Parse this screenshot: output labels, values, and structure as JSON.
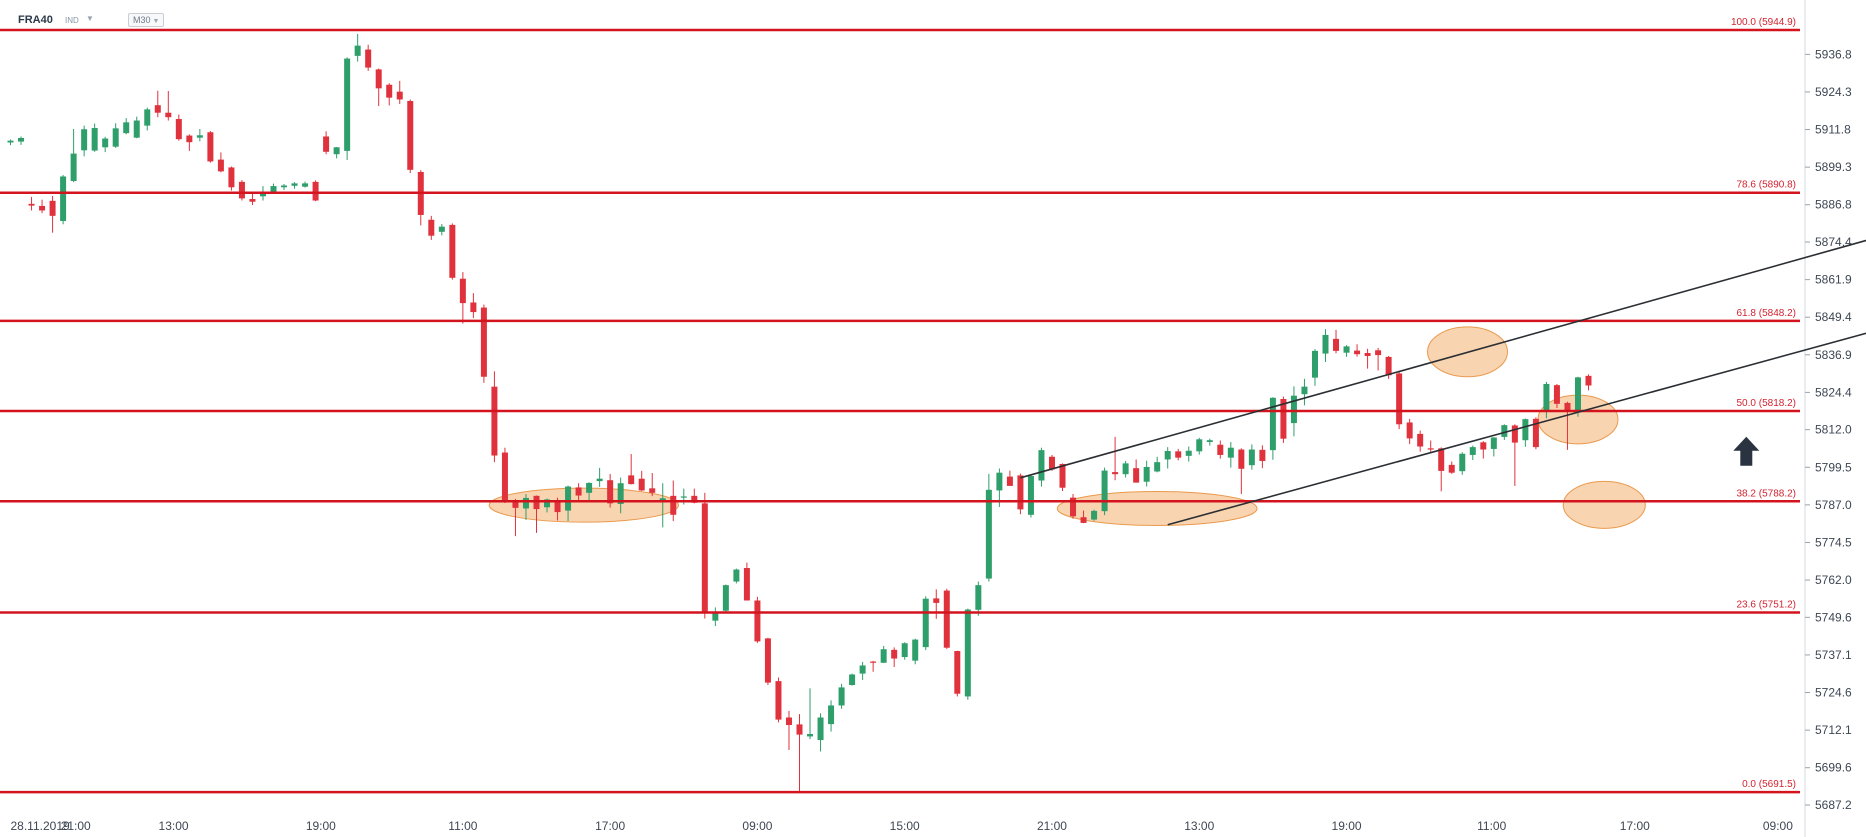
{
  "header": {
    "symbol": "FRA40",
    "badge": "IND",
    "interval": "M30"
  },
  "colors": {
    "up": "#2e9e6a",
    "down": "#e0323c",
    "level": "#d3141f",
    "channel": "#2b2f33",
    "zone": "#f5b87c",
    "zone_stroke": "#e99a4e",
    "arrow": "#2a3440"
  },
  "chart_data": {
    "type": "candlestick",
    "instrument": "FRA40",
    "timeframe": "M30",
    "y_axis": {
      "range": [
        5687.2,
        5944.9
      ],
      "ticks": [
        5936.8,
        5924.3,
        5911.8,
        5899.3,
        5886.8,
        5874.4,
        5861.9,
        5849.4,
        5836.9,
        5824.4,
        5812.0,
        5799.5,
        5787.0,
        5774.5,
        5762.0,
        5749.6,
        5737.1,
        5724.6,
        5712.1,
        5699.6,
        5687.2
      ]
    },
    "x_axis": {
      "ticks": [
        "28.11.2019",
        "21:00",
        "13:00",
        "19:00",
        "11:00",
        "17:00",
        "09:00",
        "15:00",
        "21:00",
        "13:00",
        "19:00",
        "11:00",
        "17:00",
        "09:00"
      ]
    },
    "fibonacci_levels": [
      {
        "label": "100.0 (5944.9)",
        "ratio": 100.0,
        "value": 5944.9
      },
      {
        "label": "78.6 (5890.8)",
        "ratio": 78.6,
        "value": 5890.8
      },
      {
        "label": "61.8 (5848.2)",
        "ratio": 61.8,
        "value": 5848.2
      },
      {
        "label": "50.0 (5818.2)",
        "ratio": 50.0,
        "value": 5818.2
      },
      {
        "label": "38.2 (5788.2)",
        "ratio": 38.2,
        "value": 5788.2
      },
      {
        "label": "23.6 (5751.2)",
        "ratio": 23.6,
        "value": 5751.2
      },
      {
        "label": "0.0 (5691.5)",
        "ratio": 0.0,
        "value": 5691.5
      }
    ],
    "candles": [
      {
        "o": 5907.5,
        "h": 5908.5,
        "l": 5906.6,
        "c": 5908.1
      },
      {
        "o": 5907.8,
        "h": 5909.5,
        "l": 5906.7,
        "c": 5909.0
      },
      {
        "o": 5887.1,
        "h": 5889.4,
        "l": 5884.9,
        "c": 5886.5
      },
      {
        "o": 5886.4,
        "h": 5888.5,
        "l": 5884.0,
        "c": 5884.9
      },
      {
        "o": 5888.1,
        "h": 5889.7,
        "l": 5877.5,
        "c": 5883.1
      },
      {
        "o": 5881.4,
        "h": 5896.7,
        "l": 5880.3,
        "c": 5896.2
      },
      {
        "o": 5894.7,
        "h": 5912.0,
        "l": 5894.3,
        "c": 5903.8
      },
      {
        "o": 5904.9,
        "h": 5913.1,
        "l": 5902.9,
        "c": 5911.9
      },
      {
        "o": 5904.8,
        "h": 5913.8,
        "l": 5904.4,
        "c": 5912.3
      },
      {
        "o": 5905.9,
        "h": 5909.4,
        "l": 5904.3,
        "c": 5908.8
      },
      {
        "o": 5906.1,
        "h": 5913.9,
        "l": 5905.7,
        "c": 5912.2
      },
      {
        "o": 5910.6,
        "h": 5915.6,
        "l": 5910.2,
        "c": 5914.2
      },
      {
        "o": 5909.1,
        "h": 5916.1,
        "l": 5908.9,
        "c": 5914.8
      },
      {
        "o": 5913.1,
        "h": 5919.1,
        "l": 5911.5,
        "c": 5918.5
      },
      {
        "o": 5919.9,
        "h": 5924.7,
        "l": 5915.9,
        "c": 5917.4
      },
      {
        "o": 5917.4,
        "h": 5924.6,
        "l": 5914.8,
        "c": 5915.9
      },
      {
        "o": 5915.3,
        "h": 5916.8,
        "l": 5908.1,
        "c": 5908.6
      },
      {
        "o": 5909.8,
        "h": 5910.2,
        "l": 5904.7,
        "c": 5907.6
      },
      {
        "o": 5909.1,
        "h": 5912.0,
        "l": 5907.9,
        "c": 5909.9
      },
      {
        "o": 5910.9,
        "h": 5911.3,
        "l": 5900.8,
        "c": 5901.2
      },
      {
        "o": 5901.8,
        "h": 5904.2,
        "l": 5897.6,
        "c": 5897.9
      },
      {
        "o": 5899.2,
        "h": 5899.5,
        "l": 5891.5,
        "c": 5892.6
      },
      {
        "o": 5894.4,
        "h": 5895.0,
        "l": 5888.2,
        "c": 5888.9
      },
      {
        "o": 5888.7,
        "h": 5890.5,
        "l": 5886.7,
        "c": 5887.8
      },
      {
        "o": 5889.6,
        "h": 5893.0,
        "l": 5888.2,
        "c": 5890.6
      },
      {
        "o": 5891.1,
        "h": 5893.8,
        "l": 5890.9,
        "c": 5893.0
      },
      {
        "o": 5892.6,
        "h": 5893.7,
        "l": 5891.7,
        "c": 5893.2
      },
      {
        "o": 5893.1,
        "h": 5894.3,
        "l": 5892.1,
        "c": 5893.9
      },
      {
        "o": 5892.8,
        "h": 5894.5,
        "l": 5892.5,
        "c": 5893.9
      },
      {
        "o": 5894.4,
        "h": 5894.9,
        "l": 5888.0,
        "c": 5888.2
      },
      {
        "o": 5909.5,
        "h": 5911.2,
        "l": 5903.6,
        "c": 5904.4
      },
      {
        "o": 5903.6,
        "h": 5906.0,
        "l": 5902.2,
        "c": 5905.9
      },
      {
        "o": 5904.7,
        "h": 5935.8,
        "l": 5901.7,
        "c": 5935.4
      },
      {
        "o": 5936.3,
        "h": 5943.6,
        "l": 5934.4,
        "c": 5939.7
      },
      {
        "o": 5938.4,
        "h": 5940.0,
        "l": 5931.3,
        "c": 5932.4
      },
      {
        "o": 5931.8,
        "h": 5932.1,
        "l": 5919.6,
        "c": 5925.5
      },
      {
        "o": 5926.7,
        "h": 5927.2,
        "l": 5919.8,
        "c": 5922.4
      },
      {
        "o": 5924.4,
        "h": 5928.0,
        "l": 5920.3,
        "c": 5921.8
      },
      {
        "o": 5921.3,
        "h": 5921.8,
        "l": 5897.3,
        "c": 5898.4
      },
      {
        "o": 5897.7,
        "h": 5898.3,
        "l": 5879.9,
        "c": 5883.4
      },
      {
        "o": 5881.8,
        "h": 5883.1,
        "l": 5875.1,
        "c": 5876.5
      },
      {
        "o": 5877.8,
        "h": 5880.4,
        "l": 5876.6,
        "c": 5879.5
      },
      {
        "o": 5880.1,
        "h": 5880.6,
        "l": 5861.9,
        "c": 5862.5
      },
      {
        "o": 5862.2,
        "h": 5864.4,
        "l": 5847.3,
        "c": 5854.1
      },
      {
        "o": 5854.3,
        "h": 5857.4,
        "l": 5849.1,
        "c": 5851.1
      },
      {
        "o": 5852.6,
        "h": 5853.6,
        "l": 5827.6,
        "c": 5829.6
      },
      {
        "o": 5826.3,
        "h": 5831.4,
        "l": 5801.2,
        "c": 5803.4
      },
      {
        "o": 5804.4,
        "h": 5806.0,
        "l": 5787.6,
        "c": 5788.6
      },
      {
        "o": 5788.6,
        "h": 5789.0,
        "l": 5776.6,
        "c": 5786.0
      },
      {
        "o": 5785.8,
        "h": 5790.6,
        "l": 5782.0,
        "c": 5789.3
      },
      {
        "o": 5790.0,
        "h": 5790.1,
        "l": 5777.7,
        "c": 5785.6
      },
      {
        "o": 5786.2,
        "h": 5789.1,
        "l": 5784.5,
        "c": 5788.8
      },
      {
        "o": 5788.0,
        "h": 5789.4,
        "l": 5781.8,
        "c": 5784.6
      },
      {
        "o": 5785.1,
        "h": 5793.4,
        "l": 5781.6,
        "c": 5793.1
      },
      {
        "o": 5792.8,
        "h": 5794.2,
        "l": 5788.4,
        "c": 5790.1
      },
      {
        "o": 5791.0,
        "h": 5794.5,
        "l": 5787.8,
        "c": 5794.3
      },
      {
        "o": 5794.9,
        "h": 5799.3,
        "l": 5793.0,
        "c": 5795.7
      },
      {
        "o": 5795.2,
        "h": 5797.3,
        "l": 5786.1,
        "c": 5787.5
      },
      {
        "o": 5787.3,
        "h": 5796.1,
        "l": 5784.2,
        "c": 5794.2
      },
      {
        "o": 5796.8,
        "h": 5803.9,
        "l": 5793.8,
        "c": 5793.9
      },
      {
        "o": 5795.7,
        "h": 5798.3,
        "l": 5791.6,
        "c": 5791.8
      },
      {
        "o": 5792.5,
        "h": 5797.6,
        "l": 5789.9,
        "c": 5791.0
      },
      {
        "o": 5788.5,
        "h": 5794.2,
        "l": 5779.5,
        "c": 5789.2
      },
      {
        "o": 5790.0,
        "h": 5795.1,
        "l": 5781.6,
        "c": 5783.7
      },
      {
        "o": 5789.6,
        "h": 5792.4,
        "l": 5787.1,
        "c": 5789.8
      },
      {
        "o": 5790.0,
        "h": 5792.4,
        "l": 5787.5,
        "c": 5787.7
      },
      {
        "o": 5787.5,
        "h": 5791.0,
        "l": 5749.2,
        "c": 5751.0
      },
      {
        "o": 5748.5,
        "h": 5752.9,
        "l": 5746.7,
        "c": 5751.3
      },
      {
        "o": 5751.8,
        "h": 5760.5,
        "l": 5751.0,
        "c": 5760.3
      },
      {
        "o": 5761.5,
        "h": 5765.8,
        "l": 5760.9,
        "c": 5765.5
      },
      {
        "o": 5766.0,
        "h": 5767.8,
        "l": 5755.2,
        "c": 5755.2
      },
      {
        "o": 5755.2,
        "h": 5756.4,
        "l": 5741.1,
        "c": 5741.6
      },
      {
        "o": 5742.6,
        "h": 5742.8,
        "l": 5727.1,
        "c": 5727.9
      },
      {
        "o": 5728.4,
        "h": 5729.6,
        "l": 5714.7,
        "c": 5715.6
      },
      {
        "o": 5716.3,
        "h": 5718.5,
        "l": 5705.5,
        "c": 5713.8
      },
      {
        "o": 5714.0,
        "h": 5717.4,
        "l": 5691.5,
        "c": 5710.6
      },
      {
        "o": 5710.0,
        "h": 5726.0,
        "l": 5709.1,
        "c": 5710.8
      },
      {
        "o": 5708.8,
        "h": 5717.7,
        "l": 5705.0,
        "c": 5716.3
      },
      {
        "o": 5714.1,
        "h": 5722.0,
        "l": 5711.6,
        "c": 5720.3
      },
      {
        "o": 5720.3,
        "h": 5727.5,
        "l": 5719.2,
        "c": 5726.3
      },
      {
        "o": 5727.1,
        "h": 5730.9,
        "l": 5726.9,
        "c": 5730.6
      },
      {
        "o": 5730.9,
        "h": 5734.8,
        "l": 5728.8,
        "c": 5733.6
      },
      {
        "o": 5734.9,
        "h": 5735.1,
        "l": 5731.5,
        "c": 5734.8
      },
      {
        "o": 5734.5,
        "h": 5740.1,
        "l": 5734.4,
        "c": 5739.0
      },
      {
        "o": 5738.8,
        "h": 5739.6,
        "l": 5733.1,
        "c": 5735.9
      },
      {
        "o": 5736.4,
        "h": 5741.3,
        "l": 5735.5,
        "c": 5741.0
      },
      {
        "o": 5735.2,
        "h": 5742.5,
        "l": 5734.0,
        "c": 5742.2
      },
      {
        "o": 5739.7,
        "h": 5756.6,
        "l": 5738.7,
        "c": 5755.8
      },
      {
        "o": 5755.9,
        "h": 5758.9,
        "l": 5749.1,
        "c": 5754.4
      },
      {
        "o": 5758.5,
        "h": 5759.1,
        "l": 5739.1,
        "c": 5739.5
      },
      {
        "o": 5738.4,
        "h": 5738.5,
        "l": 5723.3,
        "c": 5724.2
      },
      {
        "o": 5723.3,
        "h": 5752.5,
        "l": 5722.2,
        "c": 5752.2
      },
      {
        "o": 5752.1,
        "h": 5761.5,
        "l": 5750.1,
        "c": 5760.3
      },
      {
        "o": 5762.5,
        "h": 5797.3,
        "l": 5761.5,
        "c": 5792.0
      },
      {
        "o": 5791.8,
        "h": 5799.1,
        "l": 5786.3,
        "c": 5797.7
      },
      {
        "o": 5796.4,
        "h": 5798.4,
        "l": 5794.1,
        "c": 5793.3
      },
      {
        "o": 5796.8,
        "h": 5797.4,
        "l": 5783.9,
        "c": 5785.5
      },
      {
        "o": 5783.7,
        "h": 5797.2,
        "l": 5782.8,
        "c": 5796.6
      },
      {
        "o": 5795.1,
        "h": 5806.0,
        "l": 5793.1,
        "c": 5805.2
      },
      {
        "o": 5803.0,
        "h": 5803.6,
        "l": 5798.3,
        "c": 5798.8
      },
      {
        "o": 5800.6,
        "h": 5800.8,
        "l": 5791.6,
        "c": 5792.7
      },
      {
        "o": 5789.4,
        "h": 5790.6,
        "l": 5782.4,
        "c": 5783.2
      },
      {
        "o": 5782.9,
        "h": 5785.1,
        "l": 5780.9,
        "c": 5781.0
      },
      {
        "o": 5782.1,
        "h": 5785.4,
        "l": 5781.7,
        "c": 5785.0
      },
      {
        "o": 5784.9,
        "h": 5799.4,
        "l": 5783.6,
        "c": 5798.4
      },
      {
        "o": 5797.9,
        "h": 5809.6,
        "l": 5795.2,
        "c": 5797.2
      },
      {
        "o": 5797.2,
        "h": 5801.6,
        "l": 5796.1,
        "c": 5800.8
      },
      {
        "o": 5799.2,
        "h": 5802.1,
        "l": 5794.4,
        "c": 5794.4
      },
      {
        "o": 5794.7,
        "h": 5801.7,
        "l": 5793.1,
        "c": 5799.6
      },
      {
        "o": 5798.1,
        "h": 5803.0,
        "l": 5797.8,
        "c": 5801.2
      },
      {
        "o": 5802.1,
        "h": 5806.2,
        "l": 5799.1,
        "c": 5804.9
      },
      {
        "o": 5804.8,
        "h": 5805.6,
        "l": 5801.8,
        "c": 5802.7
      },
      {
        "o": 5803.3,
        "h": 5806.4,
        "l": 5801.4,
        "c": 5805.0
      },
      {
        "o": 5804.8,
        "h": 5809.3,
        "l": 5803.7,
        "c": 5808.8
      },
      {
        "o": 5807.9,
        "h": 5809.0,
        "l": 5806.7,
        "c": 5808.5
      },
      {
        "o": 5807.0,
        "h": 5808.4,
        "l": 5802.4,
        "c": 5803.6
      },
      {
        "o": 5802.7,
        "h": 5807.9,
        "l": 5799.4,
        "c": 5806.0
      },
      {
        "o": 5805.4,
        "h": 5805.8,
        "l": 5790.6,
        "c": 5799.0
      },
      {
        "o": 5800.2,
        "h": 5807.1,
        "l": 5798.7,
        "c": 5805.4
      },
      {
        "o": 5805.3,
        "h": 5806.8,
        "l": 5799.2,
        "c": 5801.6
      },
      {
        "o": 5805.2,
        "h": 5822.8,
        "l": 5802.0,
        "c": 5822.6
      },
      {
        "o": 5822.2,
        "h": 5823.0,
        "l": 5807.6,
        "c": 5809.0
      },
      {
        "o": 5814.2,
        "h": 5826.4,
        "l": 5809.8,
        "c": 5823.3
      },
      {
        "o": 5823.8,
        "h": 5828.9,
        "l": 5820.1,
        "c": 5826.3
      },
      {
        "o": 5829.3,
        "h": 5838.8,
        "l": 5826.6,
        "c": 5838.2
      },
      {
        "o": 5837.3,
        "h": 5845.4,
        "l": 5834.5,
        "c": 5843.5
      },
      {
        "o": 5842.2,
        "h": 5845.2,
        "l": 5837.4,
        "c": 5838.2
      },
      {
        "o": 5837.6,
        "h": 5840.1,
        "l": 5836.2,
        "c": 5839.7
      },
      {
        "o": 5838.3,
        "h": 5840.4,
        "l": 5836.3,
        "c": 5837.1
      },
      {
        "o": 5837.5,
        "h": 5838.9,
        "l": 5832.3,
        "c": 5836.5
      },
      {
        "o": 5838.4,
        "h": 5839.2,
        "l": 5831.7,
        "c": 5836.8
      },
      {
        "o": 5836.2,
        "h": 5836.5,
        "l": 5828.9,
        "c": 5830.1
      },
      {
        "o": 5830.7,
        "h": 5831.1,
        "l": 5812.2,
        "c": 5813.8
      },
      {
        "o": 5814.4,
        "h": 5815.6,
        "l": 5807.2,
        "c": 5809.1
      },
      {
        "o": 5810.6,
        "h": 5811.7,
        "l": 5804.7,
        "c": 5806.4
      },
      {
        "o": 5805.8,
        "h": 5808.4,
        "l": 5804.6,
        "c": 5805.7
      },
      {
        "o": 5805.8,
        "h": 5806.1,
        "l": 5791.5,
        "c": 5798.3
      },
      {
        "o": 5800.3,
        "h": 5801.4,
        "l": 5797.3,
        "c": 5797.7
      },
      {
        "o": 5798.2,
        "h": 5804.5,
        "l": 5797.0,
        "c": 5804.0
      },
      {
        "o": 5803.6,
        "h": 5806.7,
        "l": 5801.9,
        "c": 5806.2
      },
      {
        "o": 5807.8,
        "h": 5808.2,
        "l": 5802.4,
        "c": 5805.4
      },
      {
        "o": 5805.6,
        "h": 5809.5,
        "l": 5803.1,
        "c": 5809.4
      },
      {
        "o": 5809.6,
        "h": 5813.8,
        "l": 5808.6,
        "c": 5813.5
      },
      {
        "o": 5813.4,
        "h": 5813.8,
        "l": 5793.3,
        "c": 5807.7
      },
      {
        "o": 5808.5,
        "h": 5815.7,
        "l": 5806.3,
        "c": 5815.5
      },
      {
        "o": 5815.6,
        "h": 5816.1,
        "l": 5805.5,
        "c": 5806.2
      },
      {
        "o": 5818.0,
        "h": 5827.9,
        "l": 5815.8,
        "c": 5827.2
      },
      {
        "o": 5826.8,
        "h": 5827.2,
        "l": 5819.2,
        "c": 5820.6
      },
      {
        "o": 5820.9,
        "h": 5821.3,
        "l": 5805.3,
        "c": 5818.2
      },
      {
        "o": 5817.7,
        "h": 5829.6,
        "l": 5816.3,
        "c": 5829.4
      },
      {
        "o": 5829.9,
        "h": 5830.4,
        "l": 5825.1,
        "c": 5826.7
      }
    ]
  },
  "annotations": {
    "channel_lines": [
      {
        "from_index": 96,
        "from_value": 5796.0,
        "to_index": 178,
        "to_value": 5876.5
      },
      {
        "from_index": 110,
        "from_value": 5780.4,
        "to_index": 178,
        "to_value": 5845.6
      }
    ],
    "zones": [
      {
        "center_index": 54.5,
        "center_value": 5786.9,
        "half_width_bars": 9.0,
        "value_span": 11.3
      },
      {
        "center_index": 109.0,
        "center_value": 5785.8,
        "half_width_bars": 9.5,
        "value_span": 11.3
      },
      {
        "center_index": 138.5,
        "center_value": 5837.9,
        "half_width_bars": 3.8,
        "value_span": 16.6
      },
      {
        "center_index": 149.0,
        "center_value": 5815.4,
        "half_width_bars": 3.8,
        "value_span": 16.2
      },
      {
        "center_index": 151.5,
        "center_value": 5787.0,
        "half_width_bars": 3.9,
        "value_span": 15.6
      }
    ],
    "up_arrow": {
      "index": 165,
      "value": 5804.0
    }
  }
}
